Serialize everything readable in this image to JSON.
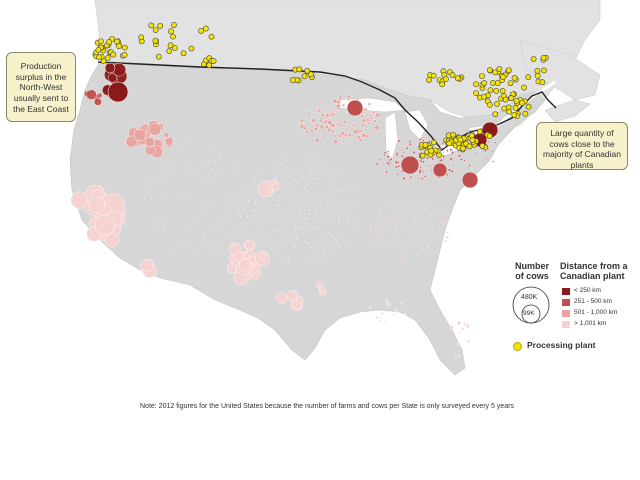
{
  "callouts": {
    "north_west": "Production surplus in the North-West usually sent to the East Coast",
    "east": "Large quantity of cows close to the majority of Canadian plants"
  },
  "legend": {
    "size_title": "Number of cows",
    "size_large": "480K",
    "size_small": "99K",
    "distance_title": "Distance from a Canadian plant",
    "distance_classes": [
      {
        "label": "< 250 km",
        "color": "#8b1a1a"
      },
      {
        "label": "251 - 500 km",
        "color": "#c0504d"
      },
      {
        "label": "501 - 1,000 km",
        "color": "#e8a5a0"
      },
      {
        "label": "> 1,001 km",
        "color": "#f6d3d1"
      }
    ],
    "processing_label": "Processing plant",
    "processing_color": "#f4e300"
  },
  "note": "Note: 2012 figures for the United States because the number of farms and cows per State is only surveyed every 5 years",
  "colors": {
    "land": "#d6d6d6",
    "canada": "#e2e2e2",
    "water": "#ffffff",
    "border": "#222222"
  }
}
